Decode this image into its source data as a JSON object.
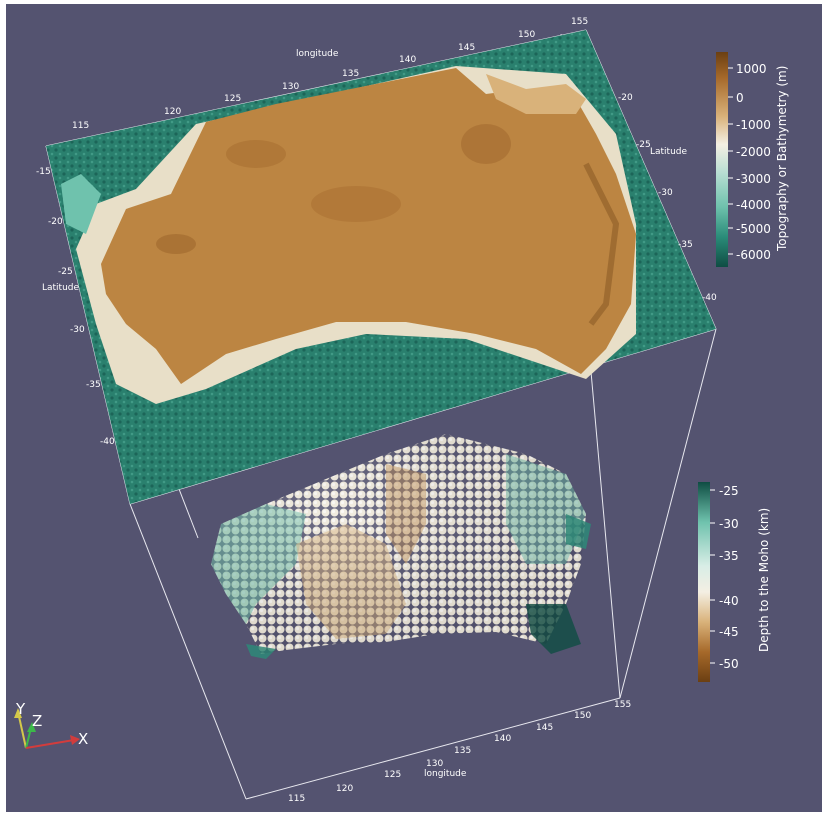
{
  "scene": {
    "background_color": "#545370",
    "top_surface": {
      "name": "topography",
      "colorbar": {
        "title": "Topography or Bathymetry (m)",
        "ticks": [
          "1000",
          "0",
          "-1000",
          "-2000",
          "-3000",
          "-4000",
          "-5000",
          "-6000"
        ],
        "colors": [
          "#6b3f12",
          "#a6692a",
          "#d9b27a",
          "#f4efe3",
          "#b9ded3",
          "#6fc2ad",
          "#2a8c79",
          "#0f4d43"
        ]
      },
      "axes": {
        "longitude_label": "longitude",
        "longitude_ticks": [
          "115",
          "120",
          "125",
          "130",
          "135",
          "140",
          "145",
          "150",
          "155"
        ],
        "latitude_label_left": "Latitude",
        "latitude_ticks_left": [
          "-15",
          "-20",
          "-25",
          "-30",
          "-35",
          "-40"
        ],
        "latitude_label_right": "Latitude",
        "latitude_ticks_right": [
          "-20",
          "-25",
          "-30",
          "-35",
          "-40"
        ]
      }
    },
    "bottom_points": {
      "name": "moho-depth",
      "colorbar": {
        "title": "Depth to the Moho (km)",
        "ticks": [
          "-25",
          "-30",
          "-35",
          "-40",
          "-45",
          "-50"
        ],
        "colors": [
          "#0f4d43",
          "#6fc2ad",
          "#d8ede6",
          "#f4efe3",
          "#d9b27a",
          "#a6692a",
          "#6b3f12"
        ]
      },
      "axes": {
        "longitude_label": "longitude",
        "longitude_ticks": [
          "115",
          "120",
          "125",
          "130",
          "135",
          "140",
          "145",
          "150",
          "155"
        ]
      }
    },
    "orientation": {
      "x": "X",
      "y": "Y",
      "z": "Z"
    }
  }
}
